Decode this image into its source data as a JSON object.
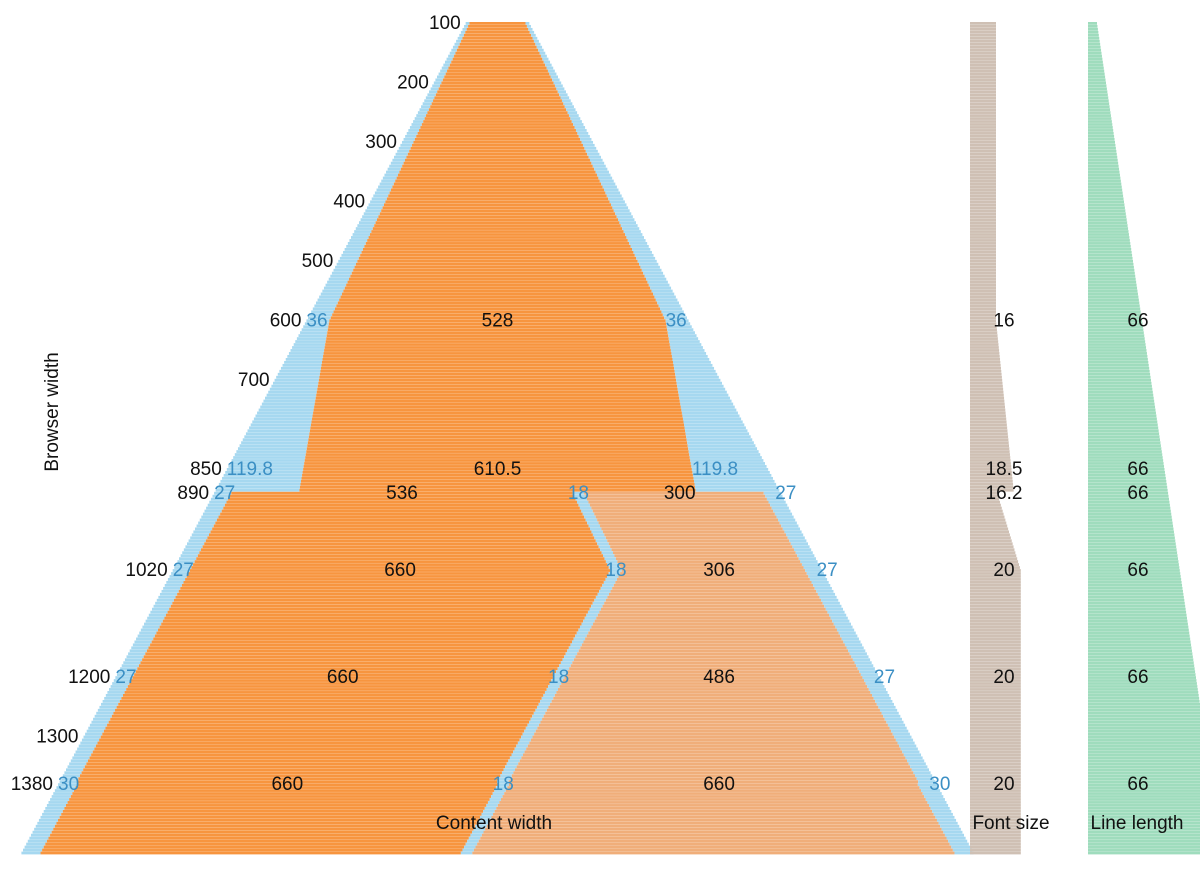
{
  "chart_data": {
    "type": "area",
    "colors": {
      "margin": "#a6d8f0",
      "content_primary": "#f7953f",
      "content_secondary": "#f0ae7a",
      "font_size_bar": "#cfc0b4",
      "line_length_bar": "#9fdcbd",
      "text": "#111111",
      "margin_text": "#3b8fc4"
    },
    "y_axis": {
      "label": "Browser width",
      "ticks": [
        100,
        200,
        300,
        400,
        500,
        600,
        700,
        850,
        890,
        1020,
        1200,
        1300,
        1380
      ],
      "range": [
        100,
        1500
      ]
    },
    "x_axis_labels": {
      "content": "Content width",
      "font_size": "Font size",
      "line_length": "Line length"
    },
    "rows": [
      {
        "browser": 600,
        "margin_left": "36",
        "content_1": "528",
        "gap": "",
        "content_2": "",
        "margin_right": "36",
        "font_size": "16",
        "line_length": "66"
      },
      {
        "browser": 850,
        "margin_left": "119.8",
        "content_1": "610.5",
        "gap": "",
        "content_2": "",
        "margin_right": "119.8",
        "font_size": "18.5",
        "line_length": "66"
      },
      {
        "browser": 890,
        "margin_left": "27",
        "content_1": "536",
        "gap": "18",
        "content_2": "300",
        "margin_right": "27",
        "font_size": "16.2",
        "line_length": "66"
      },
      {
        "browser": 1020,
        "margin_left": "27",
        "content_1": "660",
        "gap": "18",
        "content_2": "306",
        "margin_right": "27",
        "font_size": "20",
        "line_length": "66"
      },
      {
        "browser": 1200,
        "margin_left": "27",
        "content_1": "660",
        "gap": "18",
        "content_2": "486",
        "margin_right": "27",
        "font_size": "20",
        "line_length": "66"
      },
      {
        "browser": 1380,
        "margin_left": "30",
        "content_1": "660",
        "gap": "18",
        "content_2": "660",
        "margin_right": "30",
        "font_size": "20",
        "line_length": "66"
      }
    ]
  }
}
